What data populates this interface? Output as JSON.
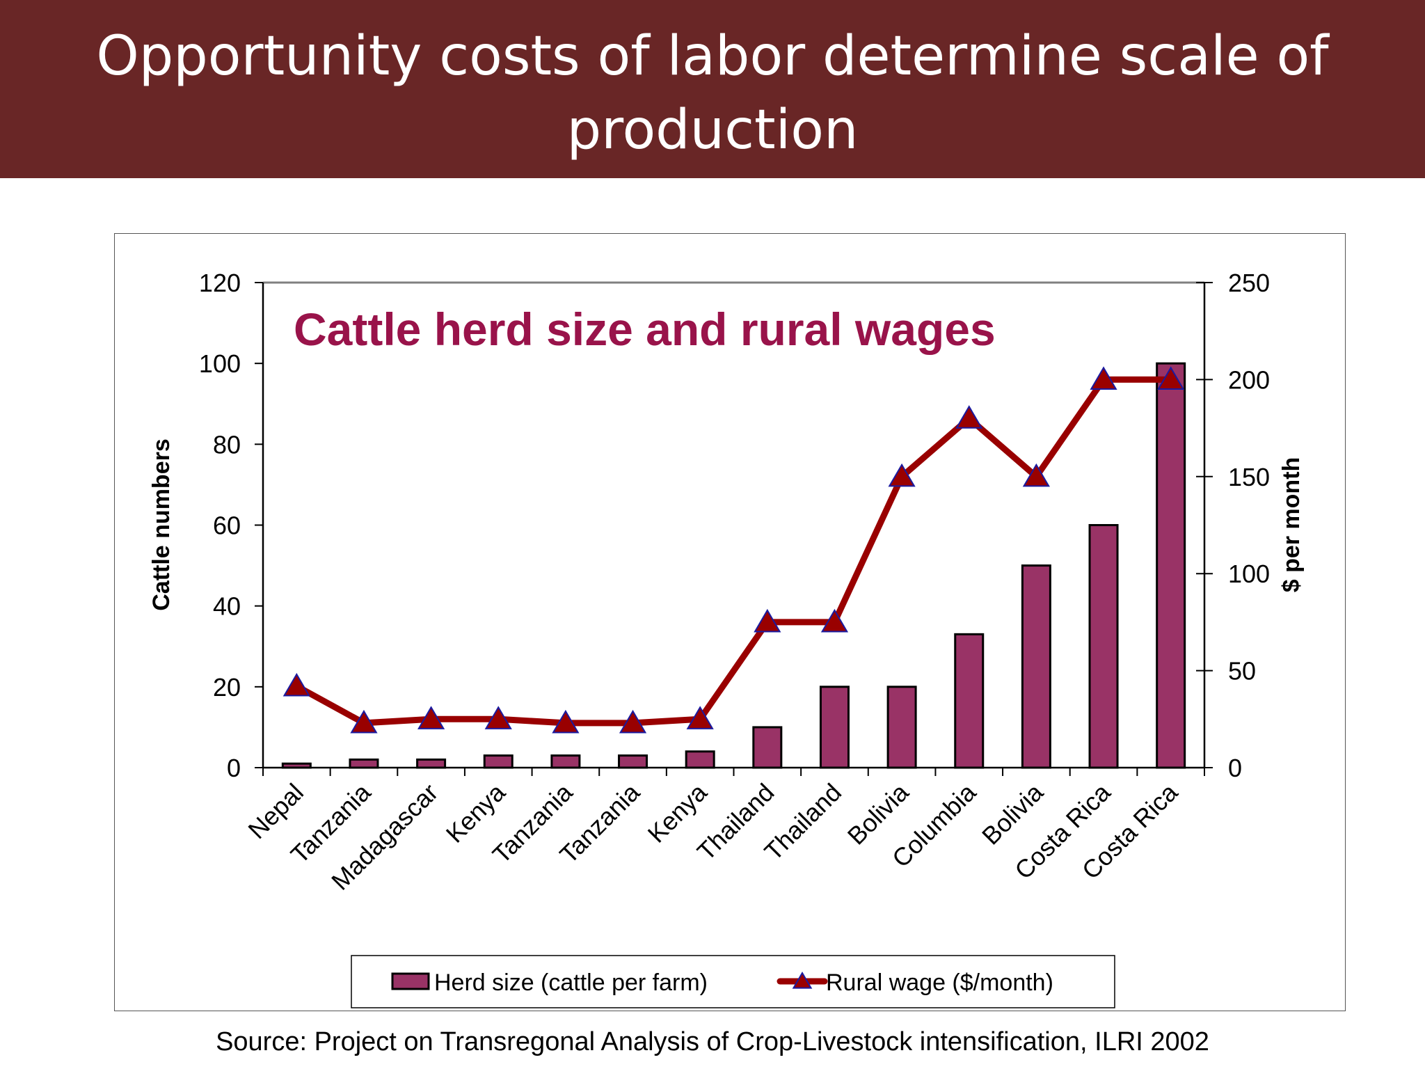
{
  "slide": {
    "title": "Opportunity costs of labor determine scale of production",
    "source": "Source: Project on Transregonal Analysis of Crop-Livestock intensification, ILRI 2002"
  },
  "colors": {
    "title_bar": "#692626",
    "bar_fill": "#993366",
    "line": "#990000",
    "marker_fill": "#990000",
    "marker_stroke": "#1a1aa0",
    "chart_title": "#99134a"
  },
  "chart_data": {
    "type": "bar",
    "title": "Cattle herd size and rural wages",
    "ylabel": "Cattle numbers",
    "y2label": "$ per month",
    "ylim": [
      0,
      120
    ],
    "y2lim": [
      0,
      250
    ],
    "yticks": [
      0,
      20,
      40,
      60,
      80,
      100,
      120
    ],
    "y2ticks": [
      0,
      50,
      100,
      150,
      200,
      250
    ],
    "grid": false,
    "legend_position": "bottom",
    "categories": [
      "Nepal",
      "Tanzania",
      "Madagascar",
      "Kenya",
      "Tanzania",
      "Tanzania",
      "Kenya",
      "Thailand",
      "Thailand",
      "Bolivia",
      "Columbia",
      "Bolivia",
      "Costa Rica",
      "Costa Rica"
    ],
    "series": [
      {
        "name": "Herd size (cattle per farm)",
        "type": "bar",
        "axis": "left",
        "values": [
          1,
          2,
          2,
          3,
          3,
          3,
          4,
          10,
          20,
          20,
          33,
          50,
          60,
          100
        ]
      },
      {
        "name": "Rural wage ($/month)",
        "type": "line",
        "axis": "right",
        "values": [
          42,
          23,
          25,
          25,
          23,
          23,
          25,
          75,
          75,
          150,
          180,
          150,
          200,
          200
        ]
      }
    ]
  }
}
